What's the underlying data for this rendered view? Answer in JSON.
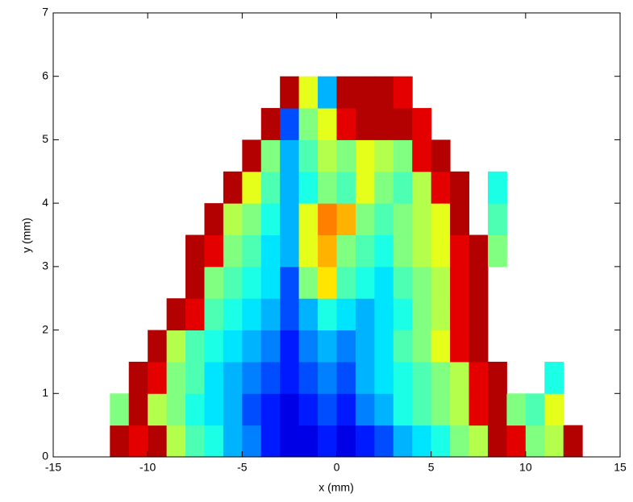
{
  "chart_data": {
    "type": "heatmap",
    "colormap": "jet",
    "xlabel": "x (mm)",
    "ylabel": "y (mm)",
    "xlim": [
      -15,
      15
    ],
    "ylim": [
      0,
      7
    ],
    "xticks": [
      -15,
      -10,
      -5,
      0,
      5,
      10,
      15
    ],
    "yticks": [
      0,
      1,
      2,
      3,
      4,
      5,
      6,
      7
    ],
    "x": [
      -11.5,
      -10.5,
      -9.5,
      -8.5,
      -7.5,
      -6.5,
      -5.5,
      -4.5,
      -3.5,
      -2.5,
      -1.5,
      -0.5,
      0.5,
      1.5,
      2.5,
      3.5,
      4.5,
      5.5,
      6.5,
      7.5,
      8.5,
      9.5,
      10.5,
      11.5,
      12.5
    ],
    "y": [
      0.25,
      0.75,
      1.25,
      1.75,
      2.25,
      2.75,
      3.25,
      3.75,
      4.25,
      4.75,
      5.25,
      5.75
    ],
    "z": [
      [
        0.95,
        0.9,
        0.95,
        0.55,
        0.45,
        0.4,
        0.3,
        0.25,
        0.15,
        0.1,
        0.1,
        0.15,
        0.1,
        0.15,
        0.2,
        0.3,
        0.35,
        0.4,
        0.5,
        0.55,
        0.95,
        0.9,
        0.5,
        0.55,
        0.95
      ],
      [
        0.5,
        0.95,
        0.55,
        0.5,
        0.4,
        0.35,
        0.3,
        0.2,
        0.15,
        0.1,
        0.15,
        0.2,
        0.15,
        0.25,
        0.3,
        0.4,
        0.45,
        0.5,
        0.55,
        0.9,
        0.95,
        0.5,
        0.45,
        0.6,
        null
      ],
      [
        null,
        0.95,
        0.9,
        0.5,
        0.45,
        0.35,
        0.3,
        0.25,
        0.2,
        0.15,
        0.2,
        0.25,
        0.2,
        0.3,
        0.35,
        0.4,
        0.45,
        0.5,
        0.55,
        0.9,
        0.95,
        null,
        null,
        0.4,
        null
      ],
      [
        null,
        null,
        0.95,
        0.55,
        0.45,
        0.4,
        0.35,
        0.3,
        0.25,
        0.15,
        0.25,
        0.3,
        0.25,
        0.3,
        0.35,
        0.45,
        0.5,
        0.6,
        0.9,
        0.95,
        null,
        null,
        null,
        null,
        null
      ],
      [
        null,
        null,
        null,
        0.95,
        0.9,
        0.45,
        0.4,
        0.35,
        0.3,
        0.2,
        0.3,
        0.4,
        0.35,
        0.3,
        0.35,
        0.4,
        0.5,
        0.55,
        0.9,
        0.95,
        null,
        null,
        null,
        null,
        null
      ],
      [
        null,
        null,
        null,
        null,
        0.95,
        0.5,
        0.45,
        0.4,
        0.35,
        0.2,
        0.5,
        0.65,
        0.45,
        0.4,
        0.35,
        0.45,
        0.5,
        0.55,
        0.9,
        0.95,
        null,
        null,
        null,
        null,
        null
      ],
      [
        null,
        null,
        null,
        null,
        0.95,
        0.9,
        0.5,
        0.45,
        0.35,
        0.3,
        0.6,
        0.7,
        0.5,
        0.45,
        0.4,
        0.5,
        0.55,
        0.6,
        0.9,
        0.95,
        0.5,
        null,
        null,
        null,
        null
      ],
      [
        null,
        null,
        null,
        null,
        null,
        0.95,
        0.55,
        0.5,
        0.4,
        0.3,
        0.6,
        0.75,
        0.7,
        0.5,
        0.45,
        0.5,
        0.55,
        0.6,
        0.95,
        null,
        0.45,
        null,
        null,
        null,
        null
      ],
      [
        null,
        null,
        null,
        null,
        null,
        null,
        0.95,
        0.6,
        0.45,
        0.3,
        0.4,
        0.5,
        0.45,
        0.6,
        0.5,
        0.45,
        0.55,
        0.9,
        0.95,
        null,
        0.4,
        null,
        null,
        null,
        null
      ],
      [
        null,
        null,
        null,
        null,
        null,
        null,
        null,
        0.95,
        0.5,
        0.3,
        0.45,
        0.55,
        0.5,
        0.6,
        0.55,
        0.5,
        0.9,
        0.95,
        null,
        null,
        null,
        null,
        null,
        null,
        null
      ],
      [
        null,
        null,
        null,
        null,
        null,
        null,
        null,
        null,
        0.95,
        0.2,
        0.5,
        0.6,
        0.9,
        0.95,
        0.95,
        0.95,
        0.9,
        null,
        null,
        null,
        null,
        null,
        null,
        null,
        null
      ],
      [
        null,
        null,
        null,
        null,
        null,
        null,
        null,
        null,
        null,
        0.95,
        0.6,
        0.3,
        0.95,
        0.95,
        0.95,
        0.9,
        null,
        null,
        null,
        null,
        null,
        null,
        null,
        null,
        null
      ]
    ]
  }
}
